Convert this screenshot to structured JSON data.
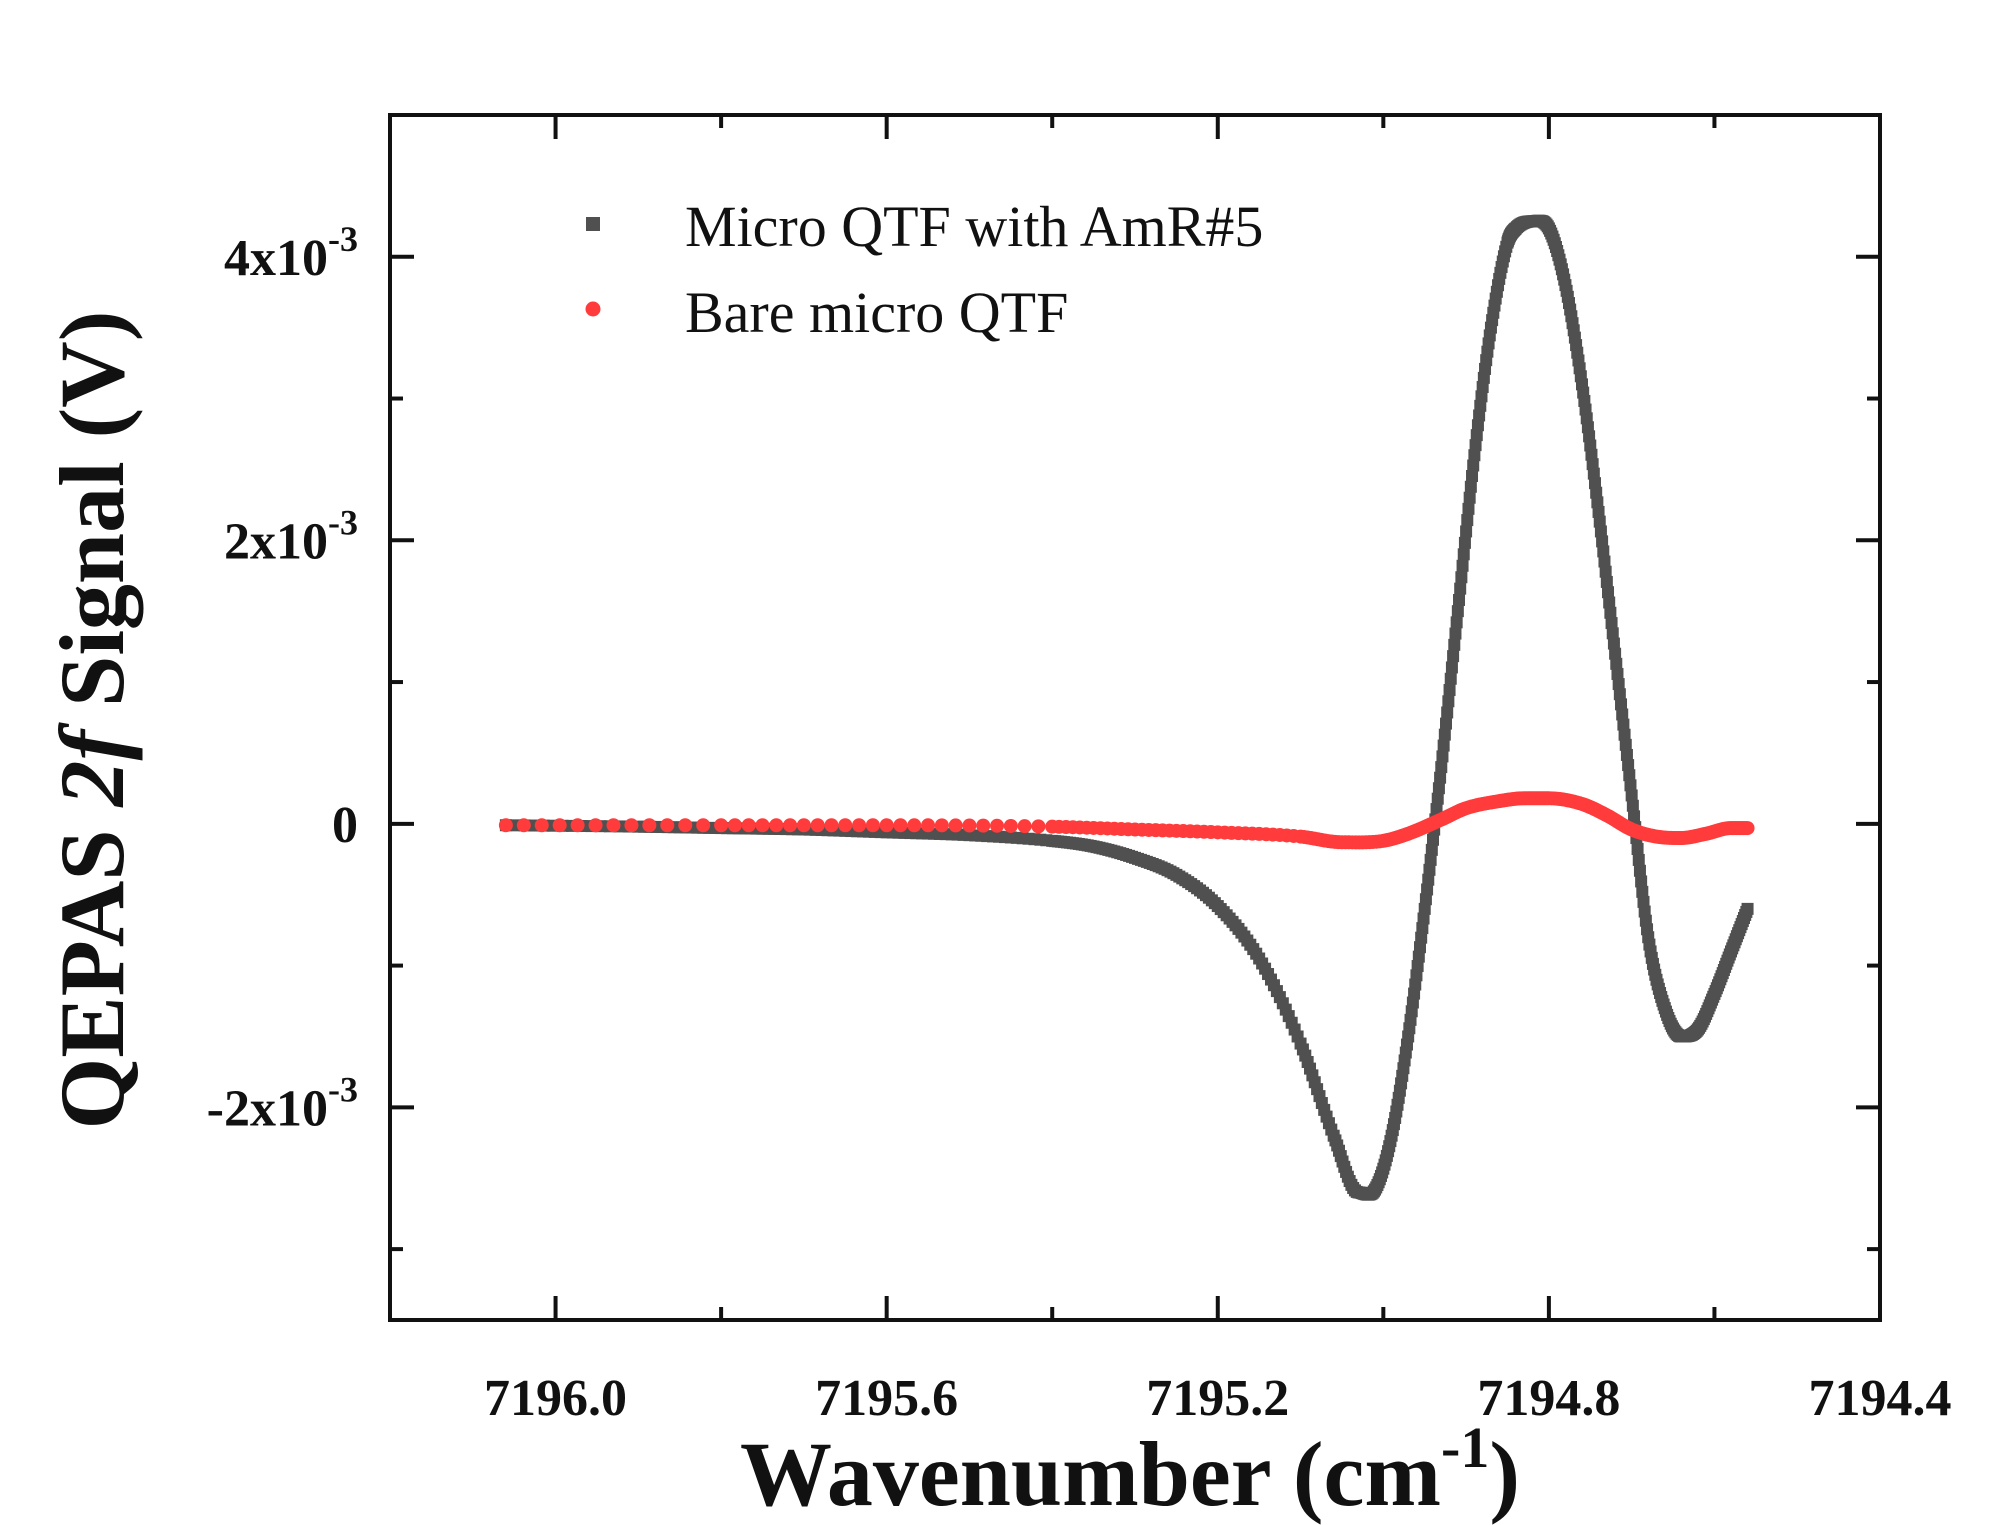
{
  "chart_data": {
    "type": "scatter",
    "title": "",
    "xlabel": "Wavenumber (cm⁻¹)",
    "xlabel_parts": {
      "text": "Wavenumber (cm",
      "superscript": "-1",
      "close": ")"
    },
    "ylabel": "QEPAS 2f Signal (V)",
    "ylabel_parts": {
      "before": "QEPAS ",
      "italic": "2f",
      "after": " Signal (V)"
    },
    "xlim": [
      7196.2,
      7194.4
    ],
    "ylim": [
      -0.0035,
      0.005
    ],
    "x_reversed": true,
    "xticks": [
      {
        "value": 7196.0,
        "label": "7196.0"
      },
      {
        "value": 7195.6,
        "label": "7195.6"
      },
      {
        "value": 7195.2,
        "label": "7195.2"
      },
      {
        "value": 7194.8,
        "label": "7194.8"
      },
      {
        "value": 7194.4,
        "label": "7194.4"
      }
    ],
    "yticks": [
      {
        "value": 0.004,
        "base": "4x10",
        "exp": "-3"
      },
      {
        "value": 0.002,
        "base": "2x10",
        "exp": "-3"
      },
      {
        "value": 0,
        "base": "0",
        "exp": ""
      },
      {
        "value": -0.002,
        "base": "-2x10",
        "exp": "-3"
      }
    ],
    "legend_position": "top-left",
    "series": [
      {
        "name": "Micro QTF with AmR#5",
        "color": "#505050",
        "marker": "square",
        "points": [
          [
            7196.06,
            -1e-05
          ],
          [
            7195.9,
            -2e-05
          ],
          [
            7195.8,
            -3e-05
          ],
          [
            7195.7,
            -4e-05
          ],
          [
            7195.6,
            -6e-05
          ],
          [
            7195.5,
            -8e-05
          ],
          [
            7195.4,
            -0.00012
          ],
          [
            7195.35,
            -0.00016
          ],
          [
            7195.3,
            -0.00024
          ],
          [
            7195.25,
            -0.00036
          ],
          [
            7195.2,
            -0.00058
          ],
          [
            7195.15,
            -0.00095
          ],
          [
            7195.1,
            -0.00155
          ],
          [
            7195.06,
            -0.0022
          ],
          [
            7195.03,
            -0.0026
          ],
          [
            7195.01,
            -0.00258
          ],
          [
            7194.99,
            -0.0022
          ],
          [
            7194.97,
            -0.0015
          ],
          [
            7194.95,
            -0.0006
          ],
          [
            7194.93,
            0.0004
          ],
          [
            7194.91,
            0.0015
          ],
          [
            7194.89,
            0.0026
          ],
          [
            7194.87,
            0.0035
          ],
          [
            7194.85,
            0.0041
          ],
          [
            7194.84,
            0.0042
          ],
          [
            7194.82,
            0.00425
          ],
          [
            7194.8,
            0.0042
          ],
          [
            7194.78,
            0.0038
          ],
          [
            7194.76,
            0.0031
          ],
          [
            7194.74,
            0.0022
          ],
          [
            7194.72,
            0.0012
          ],
          [
            7194.7,
            0.0002
          ],
          [
            7194.68,
            -0.0008
          ],
          [
            7194.66,
            -0.0013
          ],
          [
            7194.64,
            -0.0015
          ],
          [
            7194.62,
            -0.00145
          ],
          [
            7194.6,
            -0.0012
          ],
          [
            7194.58,
            -0.0009
          ],
          [
            7194.56,
            -0.0006
          ]
        ]
      },
      {
        "name": "Bare micro QTF",
        "color": "#ff3b3b",
        "marker": "circle",
        "points": [
          [
            7196.06,
            -1e-05
          ],
          [
            7195.8,
            -1e-05
          ],
          [
            7195.6,
            -1e-05
          ],
          [
            7195.4,
            -2e-05
          ],
          [
            7195.3,
            -4e-05
          ],
          [
            7195.2,
            -6e-05
          ],
          [
            7195.1,
            -9e-05
          ],
          [
            7195.05,
            -0.00013
          ],
          [
            7195.0,
            -0.00012
          ],
          [
            7194.97,
            -7e-05
          ],
          [
            7194.93,
            3e-05
          ],
          [
            7194.9,
            0.00011
          ],
          [
            7194.86,
            0.00016
          ],
          [
            7194.83,
            0.00018
          ],
          [
            7194.8,
            0.00018
          ],
          [
            7194.76,
            0.00014
          ],
          [
            7194.73,
            6e-05
          ],
          [
            7194.7,
            -4e-05
          ],
          [
            7194.67,
            -9e-05
          ],
          [
            7194.64,
            -0.0001
          ],
          [
            7194.61,
            -7e-05
          ],
          [
            7194.58,
            -3e-05
          ],
          [
            7194.56,
            -3e-05
          ]
        ]
      }
    ]
  }
}
